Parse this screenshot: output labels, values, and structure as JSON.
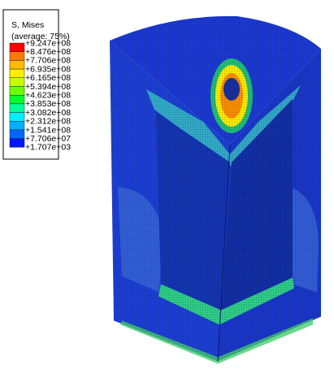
{
  "legend": {
    "title": "S, Mises",
    "subtitle": "(average: 75%)",
    "labels": [
      "+9.247e+08",
      "+8.476e+08",
      "+7.706e+08",
      "+6.935e+08",
      "+6.165e+08",
      "+5.394e+08",
      "+4.623e+08",
      "+3.853e+08",
      "+3.082e+08",
      "+2.312e+08",
      "+1.541e+08",
      "+7.706e+07",
      "+1.707e+03"
    ],
    "colors": [
      "#ff0000",
      "#ff7a00",
      "#ffbb00",
      "#ffee00",
      "#c6ff00",
      "#6fff00",
      "#00ff2a",
      "#00ff9a",
      "#00f0ff",
      "#00b0ff",
      "#0068ff",
      "#0016ff"
    ]
  }
}
